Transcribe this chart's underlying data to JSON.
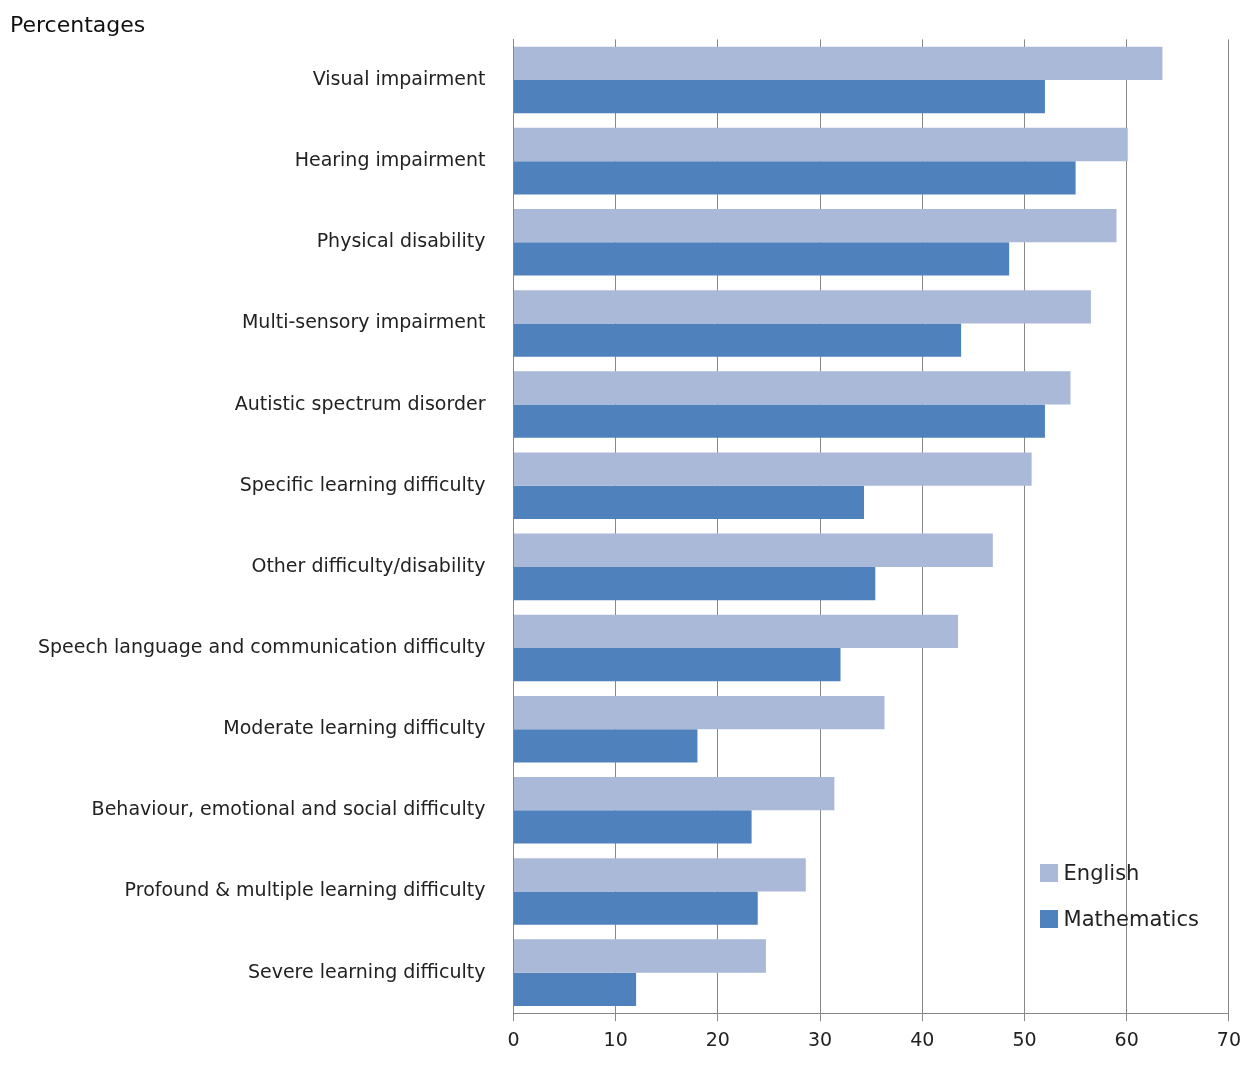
{
  "chart_data": {
    "type": "bar",
    "orientation": "horizontal",
    "title": "Percentages",
    "categories": [
      "Visual impairment",
      "Hearing impairment",
      "Physical disability",
      "Multi-sensory impairment",
      "Autistic spectrum disorder",
      "Specific learning difficulty",
      "Other difficulty/disability",
      "Speech language and communication difficulty",
      "Moderate learning difficulty",
      "Behaviour, emotional and social difficulty",
      "Profound & multiple learning difficulty",
      "Severe learning difficulty"
    ],
    "series": [
      {
        "name": "English",
        "color": "#aab9d8",
        "values": [
          63.5,
          60.1,
          59.0,
          56.5,
          54.5,
          50.7,
          46.9,
          43.5,
          36.3,
          31.4,
          28.6,
          24.7
        ]
      },
      {
        "name": "Mathematics",
        "color": "#4f81bd",
        "values": [
          52.0,
          55.0,
          48.5,
          43.8,
          52.0,
          34.3,
          35.4,
          32.0,
          18.0,
          23.3,
          23.9,
          12.0
        ]
      }
    ],
    "xlim": [
      0,
      70
    ],
    "xticks": [
      0,
      10,
      20,
      30,
      40,
      50,
      60,
      70
    ],
    "grid": "x",
    "legend": "bottom right"
  }
}
